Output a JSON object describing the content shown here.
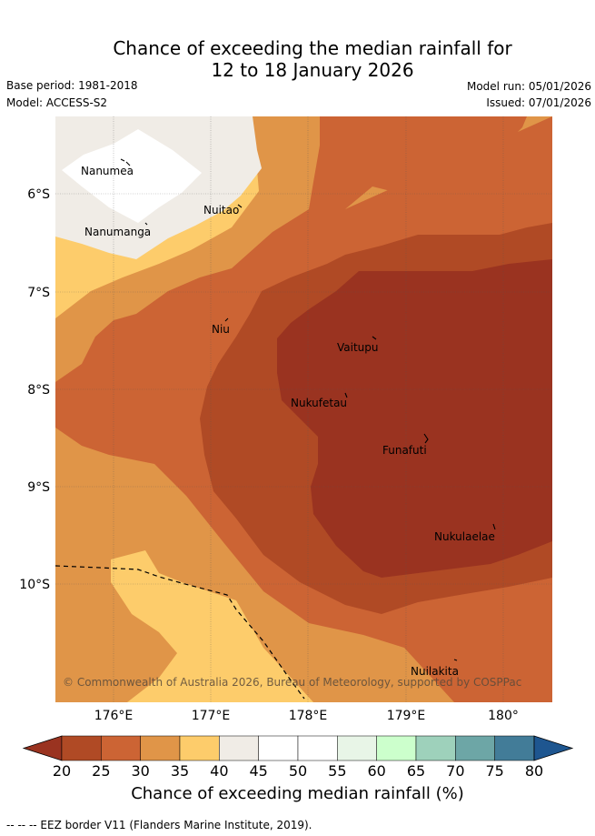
{
  "title": {
    "line1": "Chance of exceeding the median rainfall for",
    "line2": "12 to 18 January 2026"
  },
  "meta": {
    "base_period": "Base period: 1981-2018",
    "model": "Model: ACCESS-S2",
    "model_run": "Model run: 05/01/2026",
    "issued": "Issued: 07/01/2026"
  },
  "map": {
    "lat_labels": [
      "6°S",
      "7°S",
      "8°S",
      "9°S",
      "10°S"
    ],
    "lon_labels": [
      "176°E",
      "177°E",
      "178°E",
      "179°E",
      "180°"
    ],
    "places": [
      {
        "name": "Nanumea"
      },
      {
        "name": "Nuitao"
      },
      {
        "name": "Nanumanga"
      },
      {
        "name": "Niu"
      },
      {
        "name": "Vaitupu"
      },
      {
        "name": "Nukufetau"
      },
      {
        "name": "Funafuti"
      },
      {
        "name": "Nukulaelae"
      },
      {
        "name": "Nuilakita"
      }
    ],
    "copyright": "© Commonwealth of Australia 2026, Bureau of Meteorology, supported by COSPPac"
  },
  "colorbar": {
    "ticks": [
      "20",
      "25",
      "30",
      "35",
      "40",
      "45",
      "50",
      "55",
      "60",
      "65",
      "70",
      "75",
      "80"
    ],
    "colors": [
      "#b04a25",
      "#cc6434",
      "#e09548",
      "#fdcc6b",
      "#f0ece6",
      "#ffffff",
      "#ffffff",
      "#e8f5e7",
      "#ccffcc",
      "#9ed1bb",
      "#6da6a6",
      "#427c98"
    ],
    "low_color": "#9a3320",
    "high_color": "#1e5690",
    "label": "Chance of exceeding median rainfall (%)"
  },
  "footnote": "--  --  -- EEZ border V11 (Flanders Marine Institute, 2019)."
}
